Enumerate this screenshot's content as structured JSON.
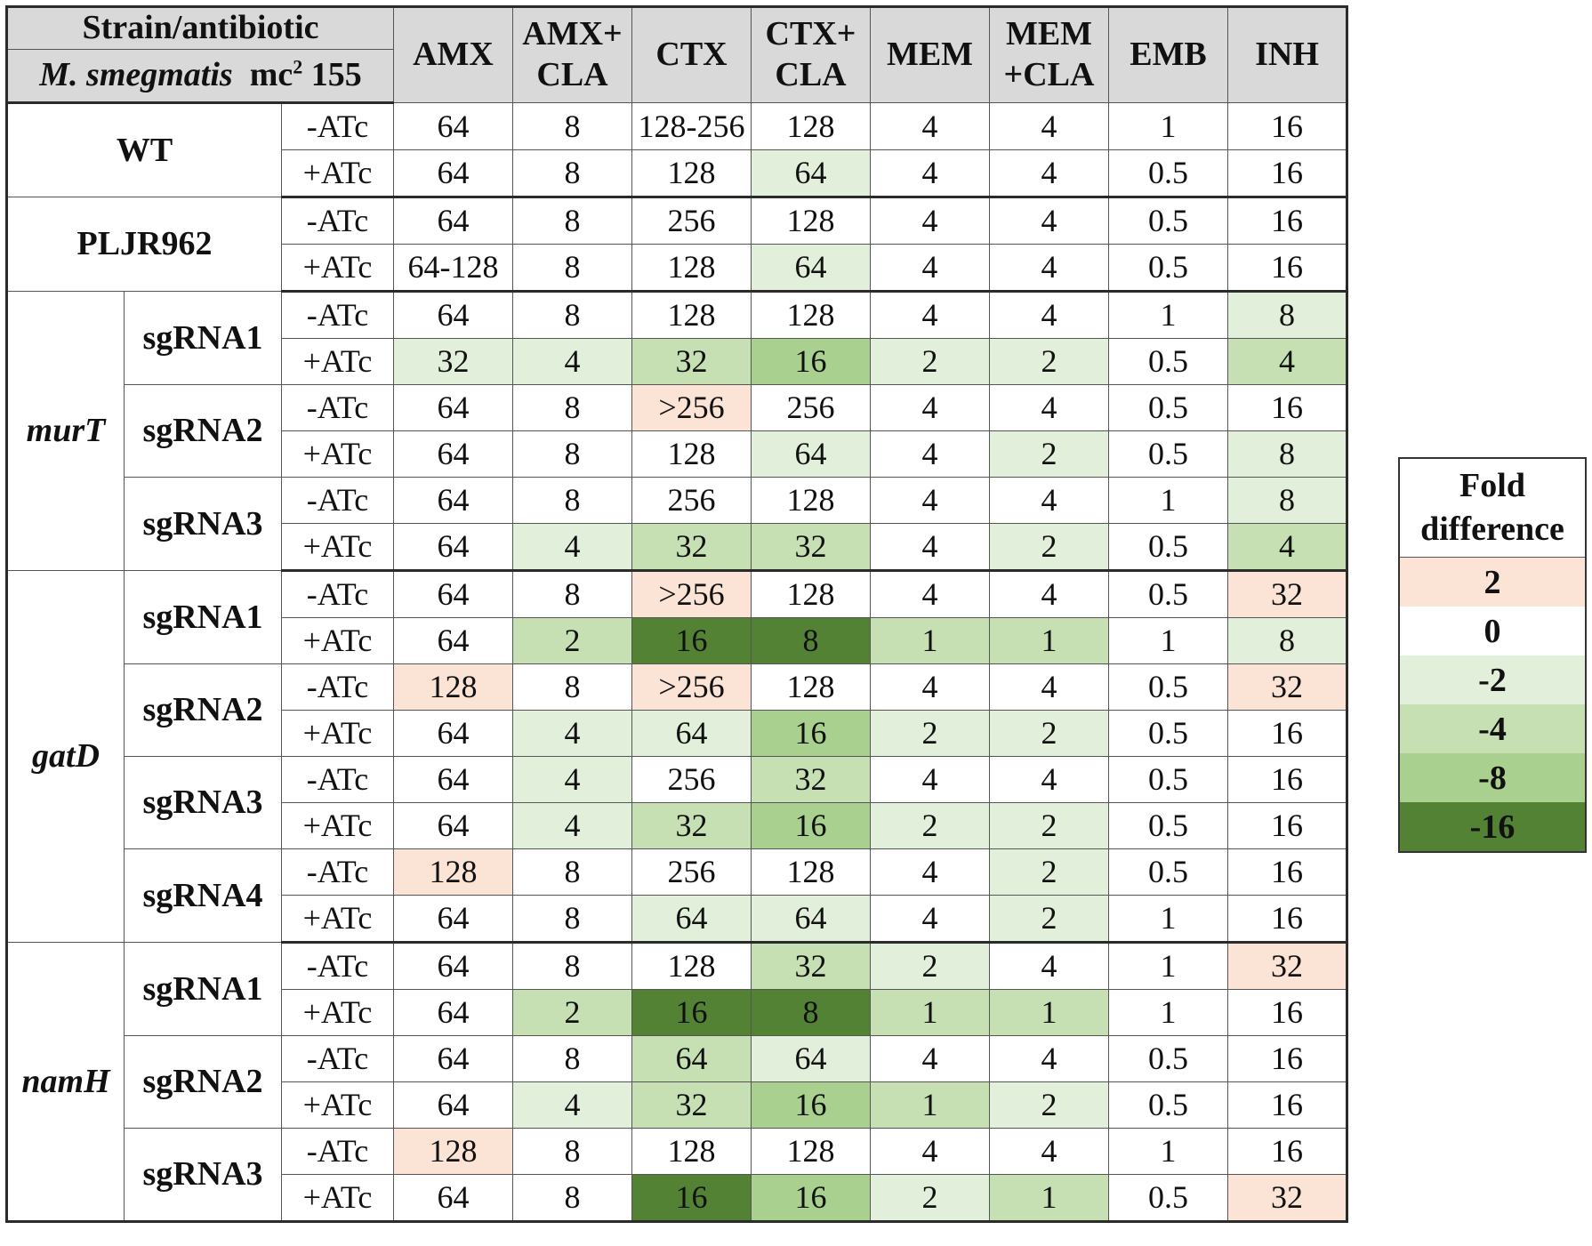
{
  "header": {
    "top_left": "Strain/antibiotic",
    "species_italic": "M. smegmatis",
    "strain_prefix": "mc",
    "strain_sup": "2",
    "strain_suffix": "155",
    "columns": [
      "AMX",
      [
        "AMX+",
        "CLA"
      ],
      "CTX",
      [
        "CTX+",
        "CLA"
      ],
      "MEM",
      [
        "MEM",
        "+CLA"
      ],
      "EMB",
      "INH"
    ]
  },
  "rows": [
    {
      "g": "WT",
      "gi": false,
      "s": "",
      "c": "-ATc",
      "v": [
        "64",
        "8",
        "128-256",
        "128",
        "4",
        "4",
        "1",
        "16"
      ],
      "f": [
        0,
        0,
        0,
        0,
        0,
        0,
        0,
        0
      ]
    },
    {
      "g": "WT",
      "gi": false,
      "s": "",
      "c": "+ATc",
      "v": [
        "64",
        "8",
        "128",
        "64",
        "4",
        "4",
        "0.5",
        "16"
      ],
      "f": [
        0,
        0,
        0,
        -2,
        0,
        0,
        0,
        0
      ]
    },
    {
      "g": "PLJR962",
      "gi": false,
      "s": "",
      "c": "-ATc",
      "v": [
        "64",
        "8",
        "256",
        "128",
        "4",
        "4",
        "0.5",
        "16"
      ],
      "f": [
        0,
        0,
        0,
        0,
        0,
        0,
        0,
        0
      ]
    },
    {
      "g": "PLJR962",
      "gi": false,
      "s": "",
      "c": "+ATc",
      "v": [
        "64-128",
        "8",
        "128",
        "64",
        "4",
        "4",
        "0.5",
        "16"
      ],
      "f": [
        0,
        0,
        0,
        -2,
        0,
        0,
        0,
        0
      ]
    },
    {
      "g": "murT",
      "gi": true,
      "s": "sgRNA1",
      "c": "-ATc",
      "v": [
        "64",
        "8",
        "128",
        "128",
        "4",
        "4",
        "1",
        "8"
      ],
      "f": [
        0,
        0,
        0,
        0,
        0,
        0,
        0,
        -2
      ]
    },
    {
      "g": "murT",
      "gi": true,
      "s": "sgRNA1",
      "c": "+ATc",
      "v": [
        "32",
        "4",
        "32",
        "16",
        "2",
        "2",
        "0.5",
        "4"
      ],
      "f": [
        -2,
        -2,
        -4,
        -8,
        -2,
        -2,
        0,
        -4
      ]
    },
    {
      "g": "murT",
      "gi": true,
      "s": "sgRNA2",
      "c": "-ATc",
      "v": [
        "64",
        "8",
        ">256",
        "256",
        "4",
        "4",
        "0.5",
        "16"
      ],
      "f": [
        0,
        0,
        2,
        0,
        0,
        0,
        0,
        0
      ]
    },
    {
      "g": "murT",
      "gi": true,
      "s": "sgRNA2",
      "c": "+ATc",
      "v": [
        "64",
        "8",
        "128",
        "64",
        "4",
        "2",
        "0.5",
        "8"
      ],
      "f": [
        0,
        0,
        0,
        -2,
        0,
        -2,
        0,
        -2
      ]
    },
    {
      "g": "murT",
      "gi": true,
      "s": "sgRNA3",
      "c": "-ATc",
      "v": [
        "64",
        "8",
        "256",
        "128",
        "4",
        "4",
        "1",
        "8"
      ],
      "f": [
        0,
        0,
        0,
        0,
        0,
        0,
        0,
        -2
      ]
    },
    {
      "g": "murT",
      "gi": true,
      "s": "sgRNA3",
      "c": "+ATc",
      "v": [
        "64",
        "4",
        "32",
        "32",
        "4",
        "2",
        "0.5",
        "4"
      ],
      "f": [
        0,
        -2,
        -4,
        -4,
        0,
        -2,
        0,
        -4
      ]
    },
    {
      "g": "gatD",
      "gi": true,
      "s": "sgRNA1",
      "c": "-ATc",
      "v": [
        "64",
        "8",
        ">256",
        "128",
        "4",
        "4",
        "0.5",
        "32"
      ],
      "f": [
        0,
        0,
        2,
        0,
        0,
        0,
        0,
        2
      ]
    },
    {
      "g": "gatD",
      "gi": true,
      "s": "sgRNA1",
      "c": "+ATc",
      "v": [
        "64",
        "2",
        "16",
        "8",
        "1",
        "1",
        "1",
        "8"
      ],
      "f": [
        0,
        -4,
        -16,
        -16,
        -4,
        -4,
        0,
        -2
      ]
    },
    {
      "g": "gatD",
      "gi": true,
      "s": "sgRNA2",
      "c": "-ATc",
      "v": [
        "128",
        "8",
        ">256",
        "128",
        "4",
        "4",
        "0.5",
        "32"
      ],
      "f": [
        2,
        0,
        2,
        0,
        0,
        0,
        0,
        2
      ]
    },
    {
      "g": "gatD",
      "gi": true,
      "s": "sgRNA2",
      "c": "+ATc",
      "v": [
        "64",
        "4",
        "64",
        "16",
        "2",
        "2",
        "0.5",
        "16"
      ],
      "f": [
        0,
        -2,
        -2,
        -8,
        -2,
        -2,
        0,
        0
      ]
    },
    {
      "g": "gatD",
      "gi": true,
      "s": "sgRNA3",
      "c": "-ATc",
      "v": [
        "64",
        "4",
        "256",
        "32",
        "4",
        "4",
        "0.5",
        "16"
      ],
      "f": [
        0,
        -2,
        0,
        -4,
        0,
        0,
        0,
        0
      ]
    },
    {
      "g": "gatD",
      "gi": true,
      "s": "sgRNA3",
      "c": "+ATc",
      "v": [
        "64",
        "4",
        "32",
        "16",
        "2",
        "2",
        "0.5",
        "16"
      ],
      "f": [
        0,
        -2,
        -4,
        -8,
        -2,
        -2,
        0,
        0
      ]
    },
    {
      "g": "gatD",
      "gi": true,
      "s": "sgRNA4",
      "c": "-ATc",
      "v": [
        "128",
        "8",
        "256",
        "128",
        "4",
        "2",
        "0.5",
        "16"
      ],
      "f": [
        2,
        0,
        0,
        0,
        0,
        -2,
        0,
        0
      ]
    },
    {
      "g": "gatD",
      "gi": true,
      "s": "sgRNA4",
      "c": "+ATc",
      "v": [
        "64",
        "8",
        "64",
        "64",
        "4",
        "2",
        "1",
        "16"
      ],
      "f": [
        0,
        0,
        -2,
        -2,
        0,
        -2,
        0,
        0
      ]
    },
    {
      "g": "namH",
      "gi": true,
      "s": "sgRNA1",
      "c": "-ATc",
      "v": [
        "64",
        "8",
        "128",
        "32",
        "2",
        "4",
        "1",
        "32"
      ],
      "f": [
        0,
        0,
        0,
        -4,
        -2,
        0,
        0,
        2
      ]
    },
    {
      "g": "namH",
      "gi": true,
      "s": "sgRNA1",
      "c": "+ATc",
      "v": [
        "64",
        "2",
        "16",
        "8",
        "1",
        "1",
        "1",
        "16"
      ],
      "f": [
        0,
        -4,
        -16,
        -16,
        -4,
        -4,
        0,
        0
      ]
    },
    {
      "g": "namH",
      "gi": true,
      "s": "sgRNA2",
      "c": "-ATc",
      "v": [
        "64",
        "8",
        "64",
        "64",
        "4",
        "4",
        "0.5",
        "16"
      ],
      "f": [
        0,
        0,
        -4,
        -2,
        0,
        0,
        0,
        0
      ]
    },
    {
      "g": "namH",
      "gi": true,
      "s": "sgRNA2",
      "c": "+ATc",
      "v": [
        "64",
        "4",
        "32",
        "16",
        "1",
        "2",
        "0.5",
        "16"
      ],
      "f": [
        0,
        -2,
        -4,
        -8,
        -4,
        -2,
        0,
        0
      ]
    },
    {
      "g": "namH",
      "gi": true,
      "s": "sgRNA3",
      "c": "-ATc",
      "v": [
        "128",
        "8",
        "128",
        "128",
        "4",
        "4",
        "1",
        "16"
      ],
      "f": [
        2,
        0,
        0,
        0,
        0,
        0,
        0,
        0
      ]
    },
    {
      "g": "namH",
      "gi": true,
      "s": "sgRNA3",
      "c": "+ATc",
      "v": [
        "64",
        "8",
        "16",
        "16",
        "2",
        "1",
        "0.5",
        "32"
      ],
      "f": [
        0,
        0,
        -16,
        -8,
        -2,
        -4,
        0,
        2
      ]
    }
  ],
  "legend": {
    "title_line1": "Fold",
    "title_line2": "difference",
    "levels": [
      {
        "label": "2",
        "fold": 2,
        "color": "#fbe3d6"
      },
      {
        "label": "0",
        "fold": 0,
        "color": "#ffffff"
      },
      {
        "label": "-2",
        "fold": -2,
        "color": "#e2efda"
      },
      {
        "label": "-4",
        "fold": -4,
        "color": "#c6e0b4"
      },
      {
        "label": "-8",
        "fold": -8,
        "color": "#a9d08e"
      },
      {
        "label": "-16",
        "fold": -16,
        "color": "#548235"
      }
    ]
  }
}
